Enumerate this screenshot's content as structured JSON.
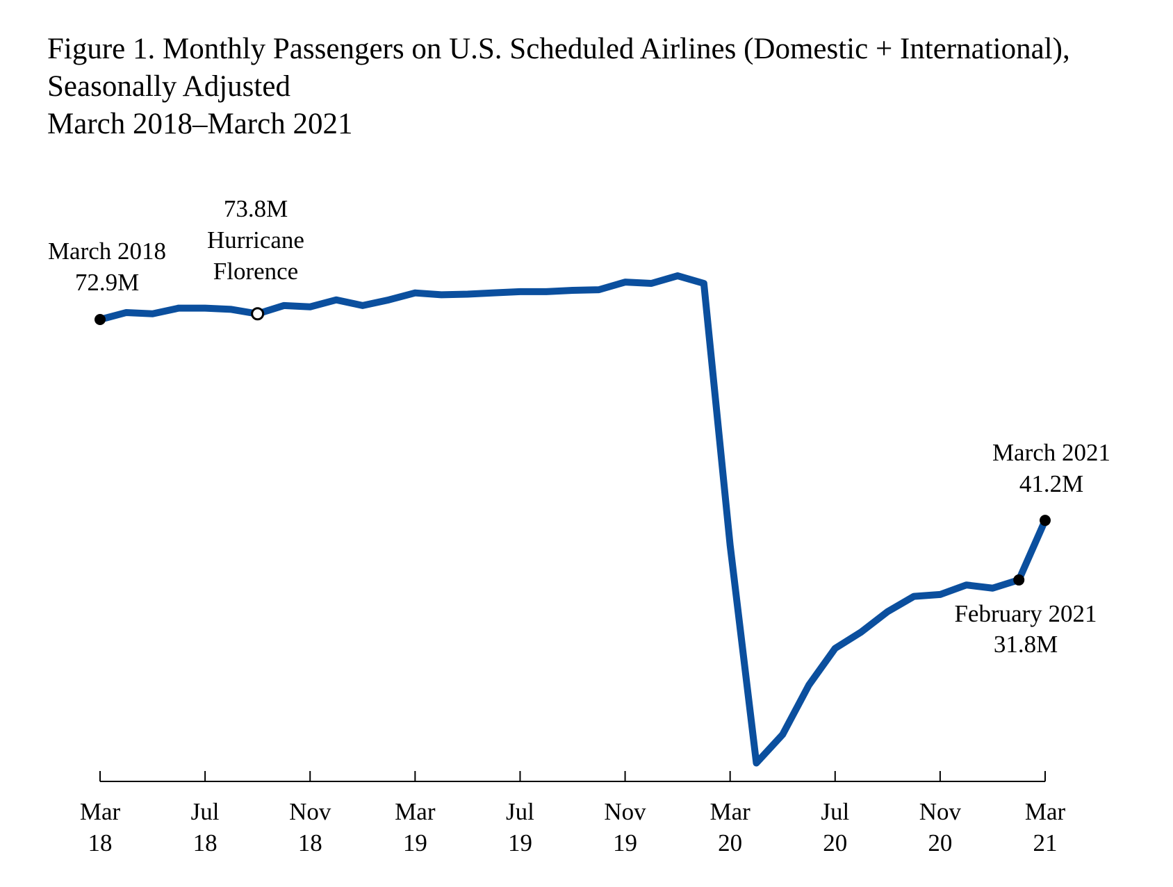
{
  "chart_data": {
    "type": "line",
    "title": "Figure 1. Monthly Passengers on U.S. Scheduled Airlines (Domestic + International), Seasonally Adjusted",
    "subtitle": "March 2018–March 2021",
    "categories": [
      "Mar 18",
      null,
      null,
      null,
      "Jul 18",
      null,
      null,
      null,
      "Nov 18",
      null,
      null,
      null,
      "Mar 19",
      null,
      null,
      null,
      "Jul 19",
      null,
      null,
      null,
      "Nov 19",
      null,
      null,
      null,
      "Mar 20",
      null,
      null,
      null,
      "Jul 20",
      null,
      null,
      null,
      "Nov 20",
      null,
      null,
      null,
      "Mar 21"
    ],
    "series": [
      {
        "name": "Passengers",
        "color": "#0b4f9e",
        "values": [
          72.9,
          74.0,
          73.8,
          74.7,
          74.7,
          74.5,
          73.8,
          75.1,
          74.9,
          76.0,
          75.1,
          76.0,
          77.1,
          76.8,
          76.9,
          77.1,
          77.3,
          77.3,
          77.5,
          77.6,
          78.8,
          78.6,
          79.8,
          78.6,
          37.3,
          2.9,
          7.4,
          15.2,
          21.0,
          23.6,
          26.8,
          29.2,
          29.5,
          31.0,
          30.5,
          31.8,
          41.2
        ],
        "value_labels": [
          "72.9M",
          null,
          null,
          null,
          null,
          null,
          "73.8M",
          null,
          null,
          null,
          null,
          null,
          null,
          null,
          null,
          null,
          null,
          null,
          null,
          null,
          null,
          null,
          null,
          null,
          null,
          null,
          null,
          null,
          null,
          null,
          null,
          null,
          null,
          null,
          null,
          "31.8M",
          "41.2M"
        ]
      }
    ],
    "annotations": [
      "March 2018",
      "Hurricane Florence",
      "February 2021",
      "March 2021"
    ],
    "ylim": [
      0,
      90
    ]
  }
}
